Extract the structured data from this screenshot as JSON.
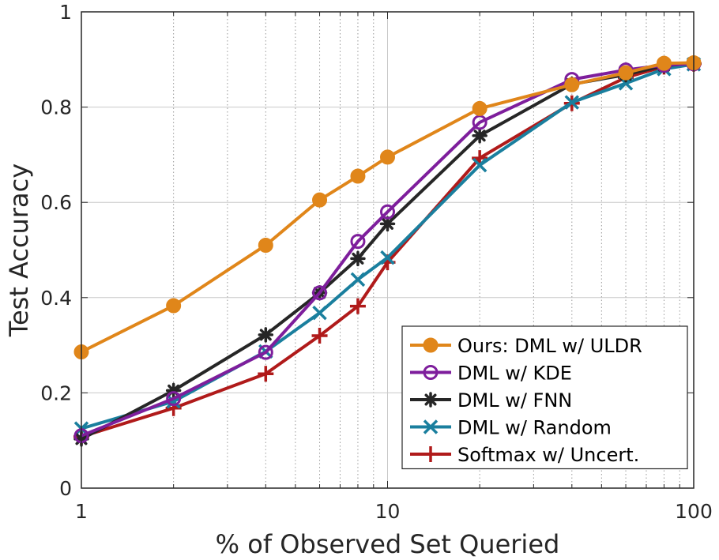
{
  "chart_data": {
    "type": "line",
    "xscale": "log",
    "xlabel": "% of Observed Set Queried",
    "ylabel": "Test Accuracy",
    "xlim": [
      1,
      100
    ],
    "ylim": [
      0,
      1
    ],
    "x_ticks": [
      1,
      10,
      100
    ],
    "x_tick_labels": [
      "1",
      "10",
      "100"
    ],
    "y_ticks": [
      0,
      0.2,
      0.4,
      0.6,
      0.8,
      1
    ],
    "y_tick_labels": [
      "0",
      "0.2",
      "0.4",
      "0.6",
      "0.8",
      "1"
    ],
    "grid": true,
    "legend_position": "lower-right",
    "x": [
      1,
      2,
      4,
      6,
      8,
      10,
      20,
      40,
      60,
      80,
      100
    ],
    "series": [
      {
        "name": "Ours: DML w/ ULDR",
        "color": "#E0861A",
        "marker": "filled-circle",
        "values": [
          0.286,
          0.383,
          0.51,
          0.605,
          0.655,
          0.695,
          0.797,
          0.847,
          0.872,
          0.892,
          0.893
        ]
      },
      {
        "name": "DML w/ KDE",
        "color": "#7E1E9C",
        "marker": "open-circle",
        "values": [
          0.11,
          0.188,
          0.285,
          0.41,
          0.518,
          0.58,
          0.768,
          0.858,
          0.878,
          0.888,
          0.891
        ]
      },
      {
        "name": "DML w/ FNN",
        "color": "#262626",
        "marker": "asterisk",
        "values": [
          0.103,
          0.205,
          0.322,
          0.41,
          0.482,
          0.555,
          0.74,
          0.848,
          0.868,
          0.887,
          0.892
        ]
      },
      {
        "name": "DML w/ Random",
        "color": "#1A7F9E",
        "marker": "x",
        "values": [
          0.125,
          0.182,
          0.287,
          0.368,
          0.438,
          0.484,
          0.678,
          0.81,
          0.85,
          0.88,
          0.89
        ]
      },
      {
        "name": "Softmax w/ Uncert.",
        "color": "#B01A1A",
        "marker": "plus",
        "values": [
          0.108,
          0.168,
          0.24,
          0.32,
          0.382,
          0.474,
          0.693,
          0.808,
          0.862,
          0.885,
          0.891
        ]
      }
    ]
  }
}
